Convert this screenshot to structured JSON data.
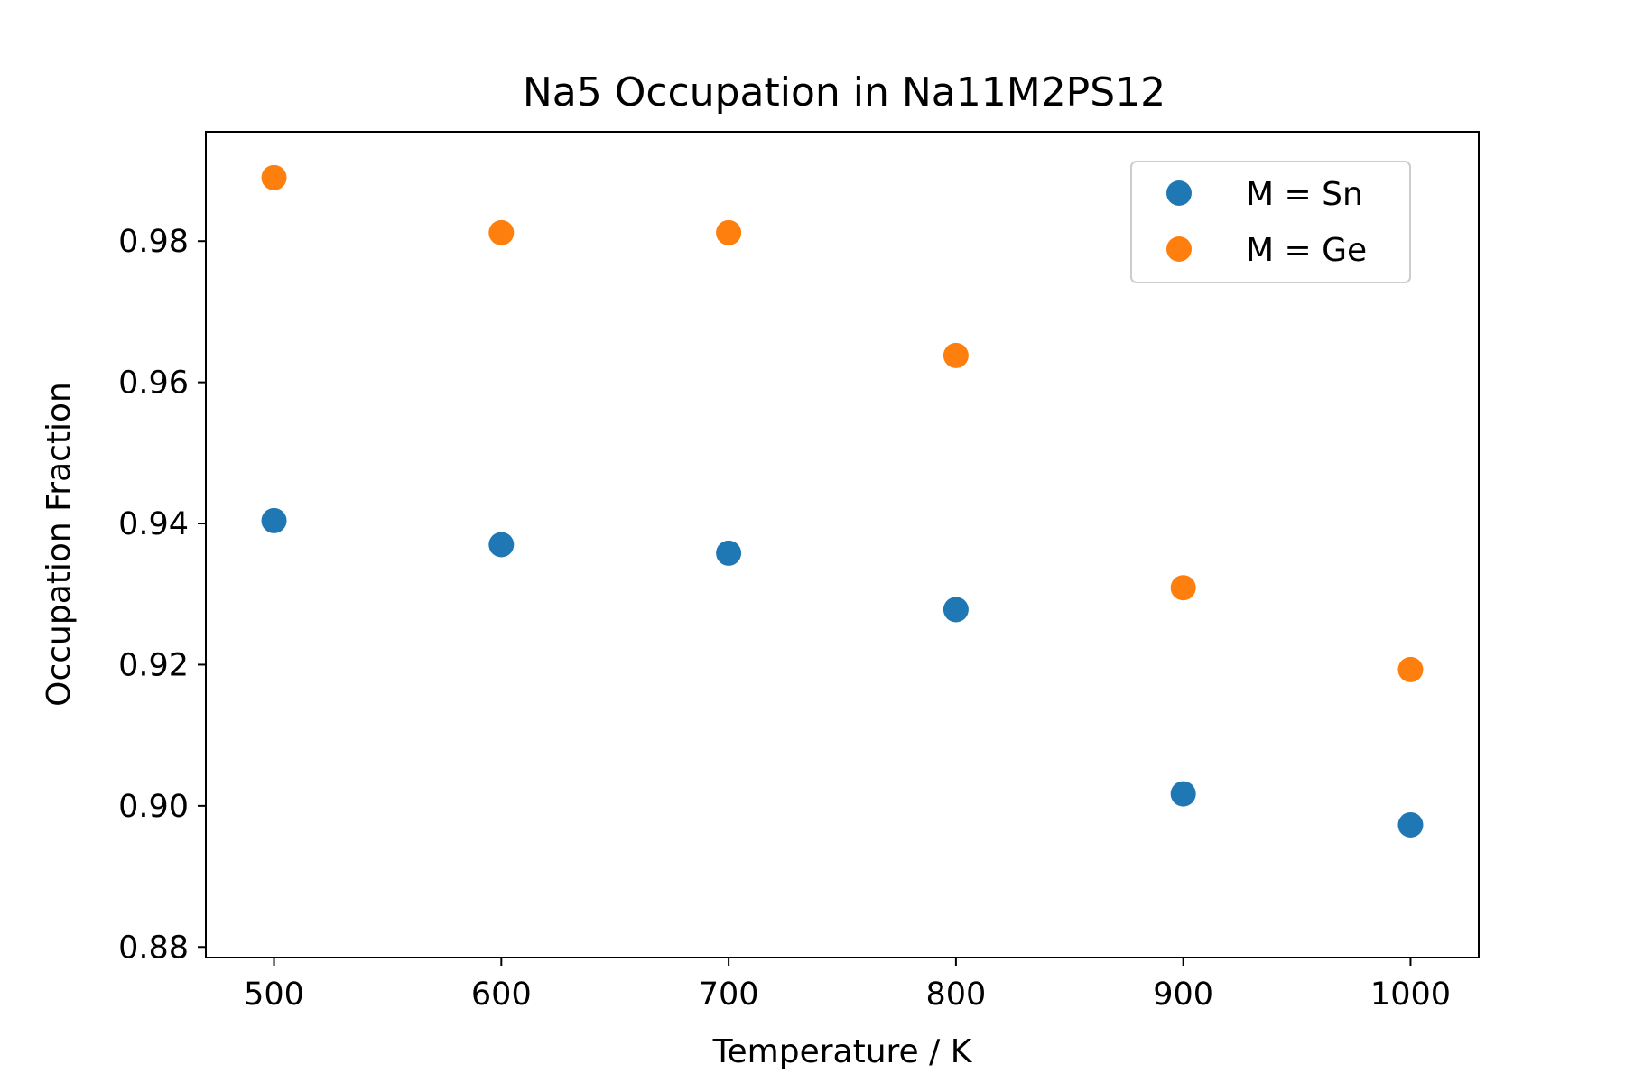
{
  "chart_data": {
    "type": "scatter",
    "title": "Na5 Occupation in Na11M2PS12",
    "xlabel": "Temperature / K",
    "ylabel": "Occupation Fraction",
    "xlim": [
      470,
      1030
    ],
    "ylim": [
      0.8785,
      0.9955
    ],
    "xticks": [
      500,
      600,
      700,
      800,
      900,
      1000
    ],
    "xtick_labels": [
      "500",
      "600",
      "700",
      "800",
      "900",
      "1000"
    ],
    "yticks": [
      0.88,
      0.9,
      0.92,
      0.94,
      0.96,
      0.98
    ],
    "ytick_labels": [
      "0.88",
      "0.90",
      "0.92",
      "0.94",
      "0.96",
      "0.98"
    ],
    "grid": false,
    "legend_position": "top-right",
    "series": [
      {
        "name": "M = Sn",
        "color": "#1f77b4",
        "x": [
          500,
          600,
          700,
          800,
          900,
          1000
        ],
        "y": [
          0.9404,
          0.937,
          0.9358,
          0.9278,
          0.9017,
          0.8973
        ]
      },
      {
        "name": "M = Ge",
        "color": "#ff7f0e",
        "x": [
          500,
          600,
          700,
          800,
          900,
          1000
        ],
        "y": [
          0.989,
          0.9812,
          0.9812,
          0.9638,
          0.9309,
          0.9193
        ]
      }
    ]
  }
}
